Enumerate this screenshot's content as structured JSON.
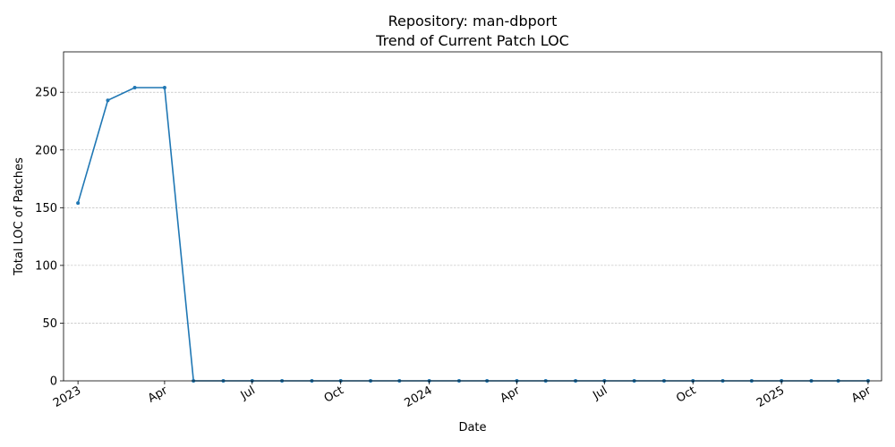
{
  "chart_data": {
    "type": "line",
    "title_line1": "Repository: man-dbport",
    "title_line2": "Trend of Current Patch LOC",
    "xlabel": "Date",
    "ylabel": "Total LOC of Patches",
    "ylim": [
      0,
      285
    ],
    "yticks": [
      0,
      50,
      100,
      150,
      200,
      250
    ],
    "xlim": [
      "2022-12-17",
      "2025-04-15"
    ],
    "xticks": [
      {
        "date": "2023-01-01",
        "label": "2023"
      },
      {
        "date": "2023-04-01",
        "label": "Apr"
      },
      {
        "date": "2023-07-01",
        "label": "Jul"
      },
      {
        "date": "2023-10-01",
        "label": "Oct"
      },
      {
        "date": "2024-01-01",
        "label": "2024"
      },
      {
        "date": "2024-04-01",
        "label": "Apr"
      },
      {
        "date": "2024-07-01",
        "label": "Jul"
      },
      {
        "date": "2024-10-01",
        "label": "Oct"
      },
      {
        "date": "2025-01-01",
        "label": "2025"
      },
      {
        "date": "2025-04-01",
        "label": "Apr"
      }
    ],
    "grid": "y-dashed",
    "color": "#1f77b4",
    "series": [
      {
        "x": [
          "2023-01-01",
          "2023-02-01",
          "2023-03-01",
          "2023-04-01",
          "2023-05-01",
          "2023-06-01",
          "2023-07-01",
          "2023-08-01",
          "2023-09-01",
          "2023-10-01",
          "2023-11-01",
          "2023-12-01",
          "2024-01-01",
          "2024-02-01",
          "2024-03-01",
          "2024-04-01",
          "2024-05-01",
          "2024-06-01",
          "2024-07-01",
          "2024-08-01",
          "2024-09-01",
          "2024-10-01",
          "2024-11-01",
          "2024-12-01",
          "2025-01-01",
          "2025-02-01",
          "2025-03-01",
          "2025-04-01"
        ],
        "values": [
          154,
          243,
          254,
          254,
          0,
          0,
          0,
          0,
          0,
          0,
          0,
          0,
          0,
          0,
          0,
          0,
          0,
          0,
          0,
          0,
          0,
          0,
          0,
          0,
          0,
          0,
          0,
          0
        ]
      }
    ]
  }
}
